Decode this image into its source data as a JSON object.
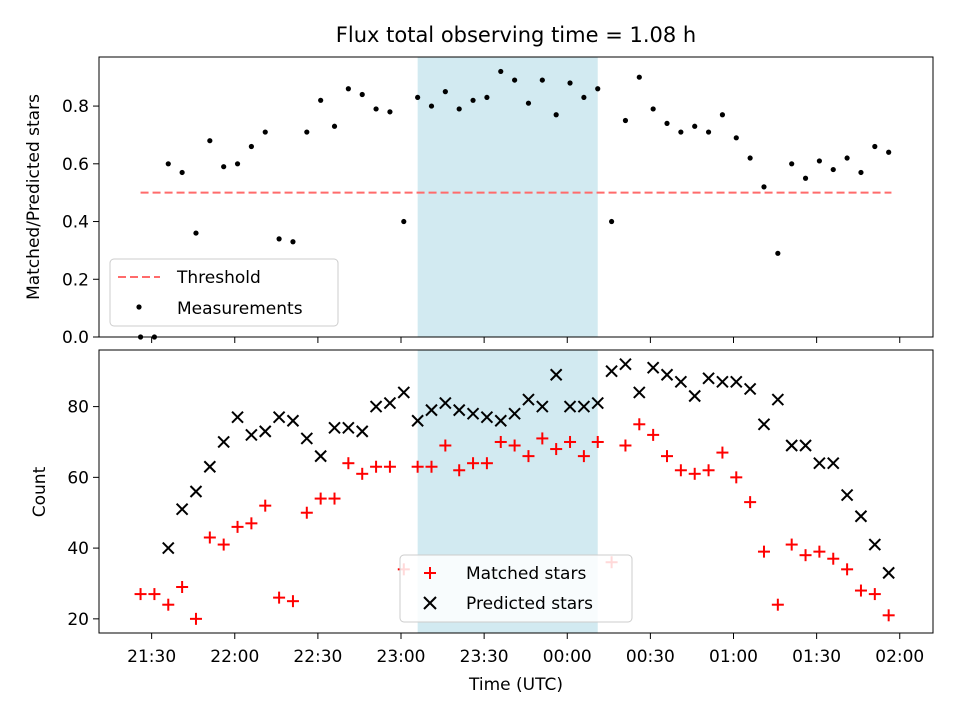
{
  "title": "Flux total observing time = 1.08 h",
  "colors": {
    "shade": "#add8e6",
    "threshold": "#ff6b6b",
    "matched": "#ff0000",
    "predicted": "#000000",
    "measure": "#000000"
  },
  "chart_data": [
    {
      "type": "scatter",
      "ylabel": "Matched/Predicted stars",
      "ylim": [
        0,
        0.97
      ],
      "yticks": [
        "0.0",
        "0.2",
        "0.4",
        "0.6",
        "0.8"
      ],
      "shaded_x": [
        "23:06",
        "00:11"
      ],
      "threshold": {
        "name": "Threshold",
        "value": 0.5,
        "x_from": "21:26",
        "x_to": "01:57"
      },
      "series": [
        {
          "name": "Measurements",
          "x": [
            "21:26",
            "21:31",
            "21:36",
            "21:41",
            "21:46",
            "21:51",
            "21:56",
            "22:01",
            "22:06",
            "22:11",
            "22:16",
            "22:21",
            "22:26",
            "22:31",
            "22:36",
            "22:41",
            "22:46",
            "22:51",
            "22:56",
            "23:01",
            "23:06",
            "23:11",
            "23:16",
            "23:21",
            "23:26",
            "23:31",
            "23:36",
            "23:41",
            "23:46",
            "23:51",
            "23:56",
            "00:01",
            "00:06",
            "00:11",
            "00:16",
            "00:21",
            "00:26",
            "00:31",
            "00:36",
            "00:41",
            "00:46",
            "00:51",
            "00:56",
            "01:01",
            "01:06",
            "01:11",
            "01:16",
            "01:21",
            "01:26",
            "01:31",
            "01:36",
            "01:41",
            "01:46",
            "01:51",
            "01:56"
          ],
          "y": [
            0.0,
            0.0,
            0.6,
            0.57,
            0.36,
            0.68,
            0.59,
            0.6,
            0.66,
            0.71,
            0.34,
            0.33,
            0.71,
            0.82,
            0.73,
            0.86,
            0.84,
            0.79,
            0.78,
            0.4,
            0.83,
            0.8,
            0.85,
            0.79,
            0.82,
            0.83,
            0.92,
            0.89,
            0.81,
            0.89,
            0.77,
            0.88,
            0.83,
            0.86,
            0.4,
            0.75,
            0.9,
            0.79,
            0.74,
            0.71,
            0.73,
            0.71,
            0.77,
            0.69,
            0.62,
            0.52,
            0.29,
            0.6,
            0.55,
            0.61,
            0.58,
            0.62,
            0.57,
            0.66,
            0.64
          ]
        }
      ]
    },
    {
      "type": "scatter",
      "ylabel": "Count",
      "xlabel": "Time (UTC)",
      "ylim": [
        16,
        96
      ],
      "yticks": [
        "20",
        "40",
        "60",
        "80"
      ],
      "xticks": [
        "21:30",
        "22:00",
        "22:30",
        "23:00",
        "23:30",
        "00:00",
        "00:30",
        "01:00",
        "01:30",
        "02:00"
      ],
      "shaded_x": [
        "23:06",
        "00:11"
      ],
      "series": [
        {
          "name": "Matched stars",
          "marker": "+",
          "x": [
            "21:26",
            "21:31",
            "21:36",
            "21:41",
            "21:46",
            "21:51",
            "21:56",
            "22:01",
            "22:06",
            "22:11",
            "22:16",
            "22:21",
            "22:26",
            "22:31",
            "22:36",
            "22:41",
            "22:46",
            "22:51",
            "22:56",
            "23:01",
            "23:06",
            "23:11",
            "23:16",
            "23:21",
            "23:26",
            "23:31",
            "23:36",
            "23:41",
            "23:46",
            "23:51",
            "23:56",
            "00:01",
            "00:06",
            "00:11",
            "00:16",
            "00:21",
            "00:26",
            "00:31",
            "00:36",
            "00:41",
            "00:46",
            "00:51",
            "00:56",
            "01:01",
            "01:06",
            "01:11",
            "01:16",
            "01:21",
            "01:26",
            "01:31",
            "01:36",
            "01:41",
            "01:46",
            "01:51",
            "01:56"
          ],
          "y": [
            27,
            27,
            24,
            29,
            20,
            43,
            41,
            46,
            47,
            52,
            26,
            25,
            50,
            54,
            54,
            64,
            61,
            63,
            63,
            34,
            63,
            63,
            69,
            62,
            64,
            64,
            70,
            69,
            66,
            71,
            68,
            70,
            66,
            70,
            36,
            69,
            75,
            72,
            66,
            62,
            61,
            62,
            67,
            60,
            53,
            39,
            24,
            41,
            38,
            39,
            37,
            34,
            28,
            27,
            21
          ]
        },
        {
          "name": "Predicted stars",
          "marker": "x",
          "x": [
            "21:36",
            "21:41",
            "21:46",
            "21:51",
            "21:56",
            "22:01",
            "22:06",
            "22:11",
            "22:16",
            "22:21",
            "22:26",
            "22:31",
            "22:36",
            "22:41",
            "22:46",
            "22:51",
            "22:56",
            "23:01",
            "23:06",
            "23:11",
            "23:16",
            "23:21",
            "23:26",
            "23:31",
            "23:36",
            "23:41",
            "23:46",
            "23:51",
            "23:56",
            "00:01",
            "00:06",
            "00:11",
            "00:16",
            "00:21",
            "00:26",
            "00:31",
            "00:36",
            "00:41",
            "00:46",
            "00:51",
            "00:56",
            "01:01",
            "01:06",
            "01:11",
            "01:16",
            "01:21",
            "01:26",
            "01:31",
            "01:36",
            "01:41",
            "01:46",
            "01:51",
            "01:56"
          ],
          "y": [
            40,
            51,
            56,
            63,
            70,
            77,
            72,
            73,
            77,
            76,
            71,
            66,
            74,
            74,
            73,
            80,
            81,
            84,
            76,
            79,
            81,
            79,
            78,
            77,
            76,
            78,
            82,
            80,
            89,
            80,
            80,
            81,
            90,
            92,
            84,
            91,
            89,
            87,
            83,
            88,
            87,
            87,
            85,
            75,
            82,
            69,
            69,
            64,
            64,
            55,
            49,
            41,
            33
          ]
        }
      ]
    }
  ]
}
